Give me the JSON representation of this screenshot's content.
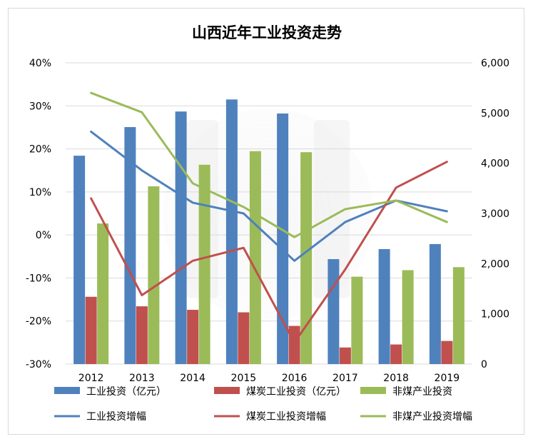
{
  "chart_data": {
    "type": "bar",
    "title": "山西近年工业投资走势",
    "categories": [
      "2012",
      "2013",
      "2014",
      "2015",
      "2016",
      "2017",
      "2018",
      "2019"
    ],
    "y_left": {
      "ticks": [
        "40%",
        "30%",
        "20%",
        "10%",
        "0%",
        "-10%",
        "-20%",
        "-30%"
      ],
      "ylim": [
        -30,
        40
      ],
      "unit": "%"
    },
    "y_right": {
      "ticks": [
        "6,000",
        "5,000",
        "4,000",
        "3,000",
        "2,000",
        "1,000",
        "0"
      ],
      "ylim": [
        0,
        6000
      ]
    },
    "bar_series": [
      {
        "name": "工业投资（亿元）",
        "axis": "right",
        "color": "#4f81bd",
        "values": [
          4150,
          4720,
          5030,
          5270,
          4990,
          2090,
          2290,
          2390
        ]
      },
      {
        "name": "煤炭工业投资（亿元）",
        "axis": "right",
        "color": "#c0504d",
        "values": [
          1340,
          1150,
          1080,
          1030,
          760,
          330,
          390,
          460
        ]
      },
      {
        "name": "非煤产业投资",
        "axis": "right",
        "color": "#9bbb59",
        "values": [
          2800,
          3540,
          3970,
          4240,
          4220,
          1740,
          1870,
          1930
        ]
      }
    ],
    "line_series": [
      {
        "name": "工业投资增幅",
        "axis": "left",
        "color": "#4f81bd",
        "values": [
          24,
          15,
          7.5,
          5,
          -6,
          3,
          8,
          5.5
        ]
      },
      {
        "name": "煤炭工业投资增幅",
        "axis": "left",
        "color": "#c0504d",
        "values": [
          8.5,
          -14,
          -6,
          -3,
          -25,
          -8,
          11,
          17
        ]
      },
      {
        "name": "非煤产业投资增幅",
        "axis": "left",
        "color": "#9bbb59",
        "values": [
          33,
          28.5,
          12,
          6.5,
          -0.5,
          6,
          8,
          3
        ]
      }
    ],
    "grid": true,
    "legend_position": "bottom"
  }
}
